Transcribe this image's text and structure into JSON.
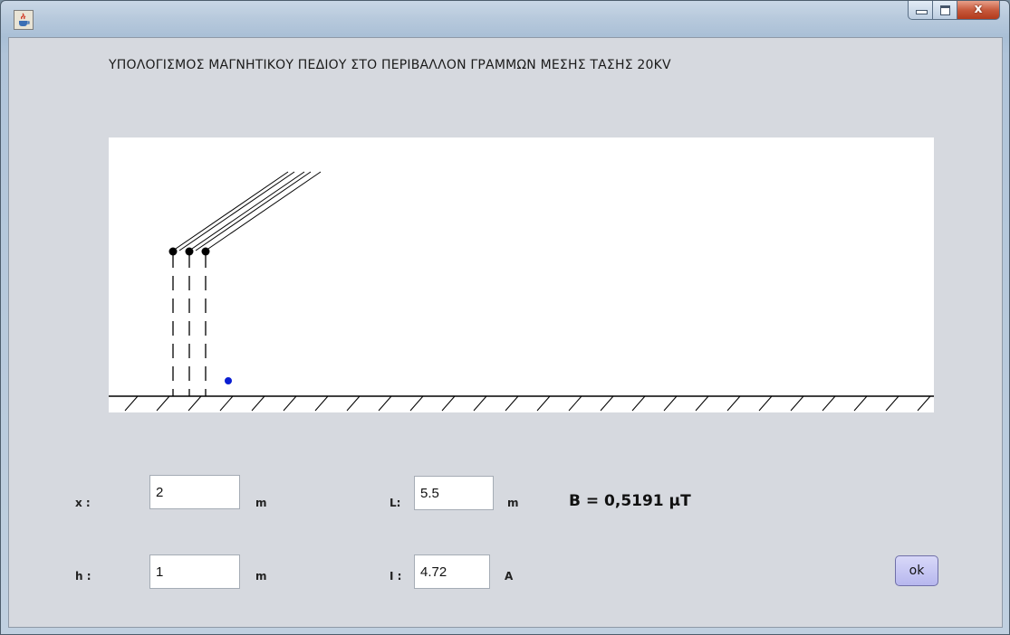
{
  "window": {
    "icon": "java-cup-icon",
    "controls": {
      "minimize": "minimize-icon",
      "maximize": "maximize-icon",
      "close_symbol": "x"
    }
  },
  "heading": "ΥΠΟΛΟΓΙΣΜΟΣ ΜΑΓΝΗΤΙΚΟΥ ΠΕΔΙΟΥ ΣΤΟ ΠΕΡΙΒΑΛΛΟΝ ΓΡΑΜΜΩΝ ΜΕΣΗΣ ΤΑΣΗΣ 20KV",
  "form": {
    "x": {
      "label": "x :",
      "value": "2",
      "unit": "m"
    },
    "h": {
      "label": "h :",
      "value": "1",
      "unit": "m"
    },
    "L": {
      "label": "L:",
      "value": "5.5",
      "unit": "m"
    },
    "I": {
      "label": "I :",
      "value": "4.72",
      "unit": "A"
    }
  },
  "result": "B = 0,5191 μT",
  "ok_label": "ok",
  "colors": {
    "point": "#0a1ed2",
    "client_bg": "#d6d9df",
    "ok_button": "#c4c4f2"
  }
}
